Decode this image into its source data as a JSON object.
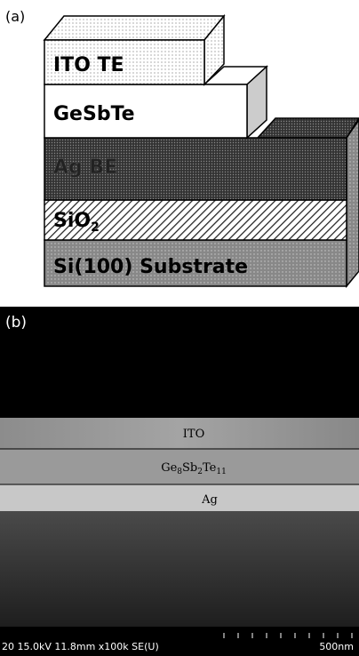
{
  "panel_a": {
    "label": "(a)",
    "layers": [
      {
        "name": "ITO TE"
      },
      {
        "name": "GeSbTe"
      },
      {
        "name": "Ag BE"
      },
      {
        "name": {
          "base": "SiO",
          "sub": "2"
        }
      },
      {
        "name": "Si(100) Substrate"
      }
    ]
  },
  "panel_b": {
    "label": "(b)",
    "layers": [
      {
        "name": "ITO"
      },
      {
        "name": [
          {
            "base": "Ge",
            "sub": "8"
          },
          {
            "base": "Sb",
            "sub": "2"
          },
          {
            "base": "Te",
            "sub": "11"
          }
        ]
      },
      {
        "name": "Ag"
      }
    ],
    "info": "20 15.0kV 11.8mm x100k SE(U)",
    "scale": "500nm"
  }
}
